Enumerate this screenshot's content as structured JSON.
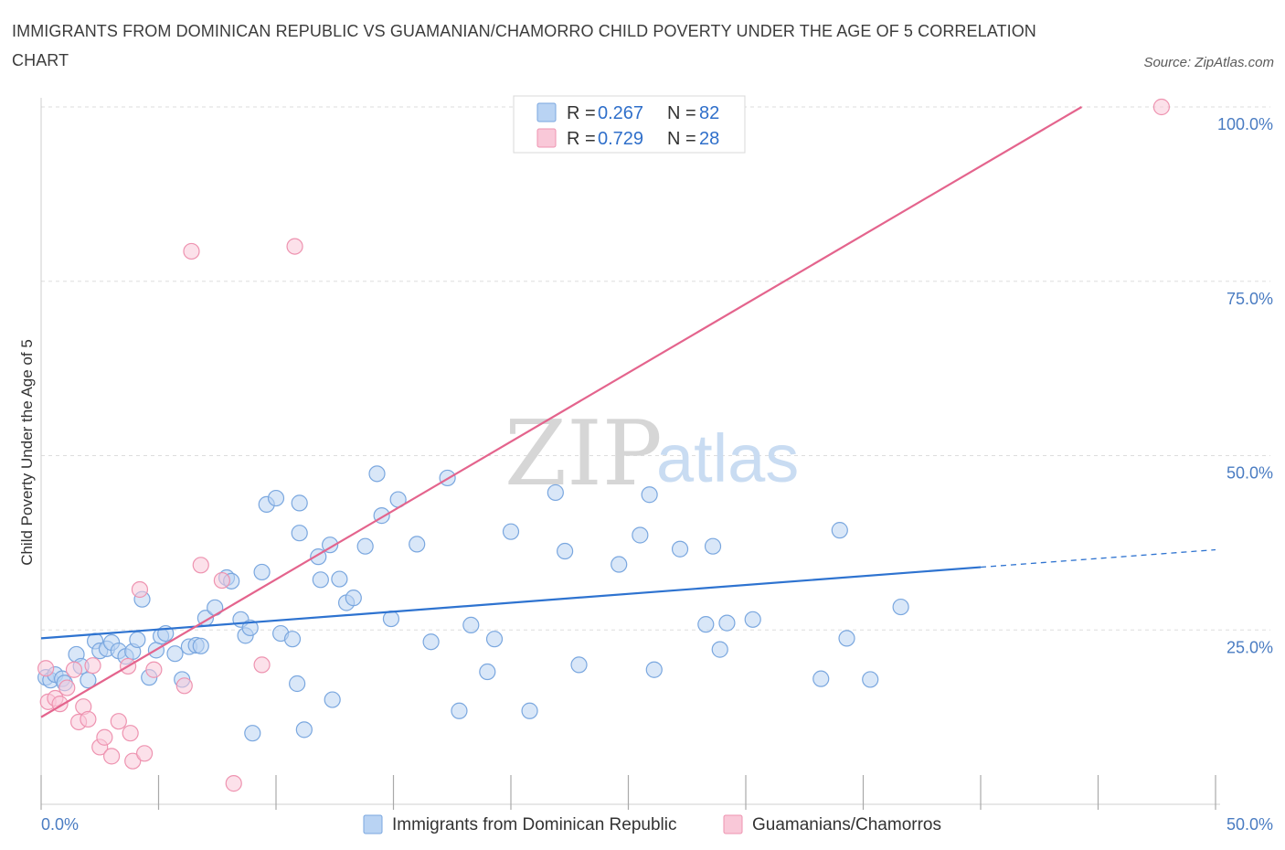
{
  "title": "IMMIGRANTS FROM DOMINICAN REPUBLIC VS GUAMANIAN/CHAMORRO CHILD POVERTY UNDER THE AGE OF 5 CORRELATION CHART",
  "source": "Source: ZipAtlas.com",
  "watermark": {
    "zip": "ZIP",
    "atlas": "atlas"
  },
  "colors": {
    "blue_fill": "#b9d3f3",
    "blue_stroke": "#7aa7df",
    "blue_line": "#2e73d0",
    "pink_fill": "#f9c8d8",
    "pink_stroke": "#ee93b0",
    "pink_line": "#e4648d",
    "grid": "#dddddd",
    "axis_label": "#4a7cc2"
  },
  "legend": {
    "rows": [
      {
        "r_label": "R = ",
        "r_value": "0.267",
        "n_label": "N = ",
        "n_value": "82",
        "color": "blue"
      },
      {
        "r_label": "R = ",
        "r_value": "0.729",
        "n_label": "N = ",
        "n_value": "28",
        "color": "pink"
      }
    ]
  },
  "bottom_legend": [
    {
      "label": "Immigrants from Dominican Republic",
      "color": "blue"
    },
    {
      "label": "Guamanians/Chamorros",
      "color": "pink"
    }
  ],
  "chart_data": {
    "type": "scatter",
    "ylabel": "Child Poverty Under the Age of 5",
    "xlim": [
      0,
      50
    ],
    "ylim": [
      0,
      100
    ],
    "x_tick_labels": [
      {
        "value": 0,
        "label": "0.0%"
      },
      {
        "value": 50,
        "label": "50.0%"
      }
    ],
    "y_tick_labels": [
      {
        "value": 25,
        "label": "25.0%"
      },
      {
        "value": 50,
        "label": "50.0%"
      },
      {
        "value": 75,
        "label": "75.0%"
      },
      {
        "value": 100,
        "label": "100.0%"
      }
    ],
    "x_minor_ticks": [
      0,
      5,
      10,
      15,
      20,
      25,
      30,
      35,
      40,
      45,
      50
    ],
    "grid": true,
    "series": [
      {
        "name": "Immigrants from Dominican Republic",
        "color": "blue",
        "trend": {
          "x1": 0,
          "y1": 23.8,
          "x2": 40,
          "y2": 34,
          "dash_to_x": 50,
          "dash_to_y": 36.5
        },
        "points": [
          [
            0.2,
            18.2
          ],
          [
            0.4,
            17.8
          ],
          [
            0.6,
            18.6
          ],
          [
            0.9,
            18.0
          ],
          [
            1.0,
            17.4
          ],
          [
            1.5,
            21.5
          ],
          [
            1.7,
            19.8
          ],
          [
            2.0,
            17.8
          ],
          [
            2.3,
            23.4
          ],
          [
            2.5,
            22.0
          ],
          [
            2.8,
            22.3
          ],
          [
            3.0,
            23.2
          ],
          [
            3.3,
            22.0
          ],
          [
            3.6,
            21.2
          ],
          [
            3.9,
            21.9
          ],
          [
            4.1,
            23.6
          ],
          [
            4.3,
            29.4
          ],
          [
            4.6,
            18.2
          ],
          [
            4.9,
            22.1
          ],
          [
            5.1,
            24.1
          ],
          [
            5.3,
            24.5
          ],
          [
            5.7,
            21.6
          ],
          [
            6.0,
            17.9
          ],
          [
            6.3,
            22.6
          ],
          [
            6.6,
            22.8
          ],
          [
            6.8,
            22.7
          ],
          [
            7.0,
            26.7
          ],
          [
            7.4,
            28.2
          ],
          [
            7.9,
            32.5
          ],
          [
            8.1,
            32.0
          ],
          [
            8.5,
            26.5
          ],
          [
            8.7,
            24.2
          ],
          [
            8.9,
            25.3
          ],
          [
            9.0,
            10.2
          ],
          [
            9.4,
            33.3
          ],
          [
            9.6,
            43.0
          ],
          [
            10.0,
            43.9
          ],
          [
            10.2,
            24.5
          ],
          [
            10.7,
            23.7
          ],
          [
            10.9,
            17.3
          ],
          [
            11.0,
            38.9
          ],
          [
            11.0,
            43.2
          ],
          [
            11.2,
            10.7
          ],
          [
            11.8,
            35.5
          ],
          [
            11.9,
            32.2
          ],
          [
            12.3,
            37.2
          ],
          [
            12.4,
            15.0
          ],
          [
            12.7,
            32.3
          ],
          [
            13.0,
            28.9
          ],
          [
            13.3,
            29.6
          ],
          [
            13.8,
            37.0
          ],
          [
            14.3,
            47.4
          ],
          [
            14.5,
            41.4
          ],
          [
            14.9,
            26.6
          ],
          [
            15.2,
            43.7
          ],
          [
            16.0,
            37.3
          ],
          [
            16.6,
            23.3
          ],
          [
            17.3,
            46.8
          ],
          [
            17.8,
            13.4
          ],
          [
            18.3,
            25.7
          ],
          [
            19.0,
            19.0
          ],
          [
            19.3,
            23.7
          ],
          [
            20.0,
            39.1
          ],
          [
            20.8,
            13.4
          ],
          [
            21.9,
            44.7
          ],
          [
            22.3,
            36.3
          ],
          [
            22.9,
            20.0
          ],
          [
            24.6,
            34.4
          ],
          [
            25.5,
            38.6
          ],
          [
            25.9,
            44.4
          ],
          [
            26.1,
            19.3
          ],
          [
            27.2,
            36.6
          ],
          [
            28.3,
            25.8
          ],
          [
            28.6,
            37.0
          ],
          [
            28.9,
            22.2
          ],
          [
            29.2,
            26.0
          ],
          [
            30.3,
            26.5
          ],
          [
            33.2,
            18.0
          ],
          [
            34.0,
            39.3
          ],
          [
            34.3,
            23.8
          ],
          [
            35.3,
            17.9
          ],
          [
            36.6,
            28.3
          ]
        ]
      },
      {
        "name": "Guamanians/Chamorros",
        "color": "pink",
        "trend": {
          "x1": 0,
          "y1": 12.5,
          "x2": 44.3,
          "y2": 100
        },
        "points": [
          [
            0.2,
            19.5
          ],
          [
            0.3,
            14.7
          ],
          [
            0.6,
            15.2
          ],
          [
            0.8,
            14.4
          ],
          [
            1.1,
            16.7
          ],
          [
            1.4,
            19.3
          ],
          [
            1.6,
            11.8
          ],
          [
            1.8,
            14.0
          ],
          [
            2.0,
            12.2
          ],
          [
            2.2,
            19.9
          ],
          [
            2.5,
            8.2
          ],
          [
            2.7,
            9.6
          ],
          [
            3.0,
            6.9
          ],
          [
            3.3,
            11.9
          ],
          [
            3.7,
            19.8
          ],
          [
            3.8,
            10.2
          ],
          [
            3.9,
            6.2
          ],
          [
            4.2,
            30.8
          ],
          [
            4.4,
            7.3
          ],
          [
            4.8,
            19.3
          ],
          [
            6.1,
            17.0
          ],
          [
            6.4,
            79.3
          ],
          [
            6.8,
            34.3
          ],
          [
            7.7,
            32.1
          ],
          [
            8.2,
            3.0
          ],
          [
            9.4,
            20.0
          ],
          [
            10.8,
            80.0
          ],
          [
            47.7,
            100.0
          ]
        ]
      }
    ]
  }
}
